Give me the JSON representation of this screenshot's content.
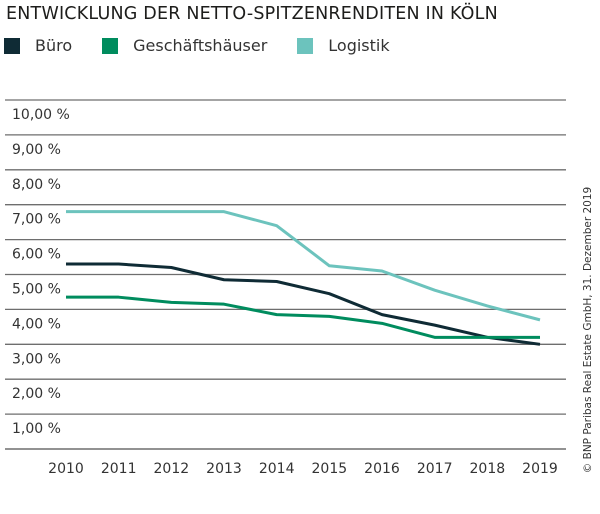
{
  "chart_data": {
    "type": "line",
    "title": "ENTWICKLUNG DER NETTO-SPITZENRENDITEN IN KÖLN",
    "categories": [
      "2010",
      "2011",
      "2012",
      "2013",
      "2014",
      "2015",
      "2016",
      "2017",
      "2018",
      "2019"
    ],
    "series": [
      {
        "name": "Büro",
        "color": "#0f2b35",
        "values": [
          5.3,
          5.3,
          5.2,
          4.85,
          4.8,
          4.45,
          3.85,
          3.55,
          3.2,
          3.0
        ]
      },
      {
        "name": "Geschäftshäuser",
        "color": "#008c5e",
        "values": [
          4.35,
          4.35,
          4.2,
          4.15,
          3.85,
          3.8,
          3.6,
          3.2,
          3.2,
          3.2
        ]
      },
      {
        "name": "Logistik",
        "color": "#6cc3bd",
        "values": [
          6.8,
          6.8,
          6.8,
          6.8,
          6.4,
          5.25,
          5.1,
          4.55,
          4.1,
          3.7
        ]
      }
    ],
    "yticks": [
      "1,00 %",
      "2,00 %",
      "3,00 %",
      "4,00 %",
      "5,00 %",
      "6,00 %",
      "7,00 %",
      "8,00 %",
      "9,00 %",
      "10,00 %"
    ],
    "ylim": [
      0,
      10
    ],
    "xlabel": "",
    "ylabel": "",
    "grid": true,
    "legend": "top-left"
  },
  "credit": "© BNP Paribas Real Estate GmbH, 31. Dezember 2019"
}
